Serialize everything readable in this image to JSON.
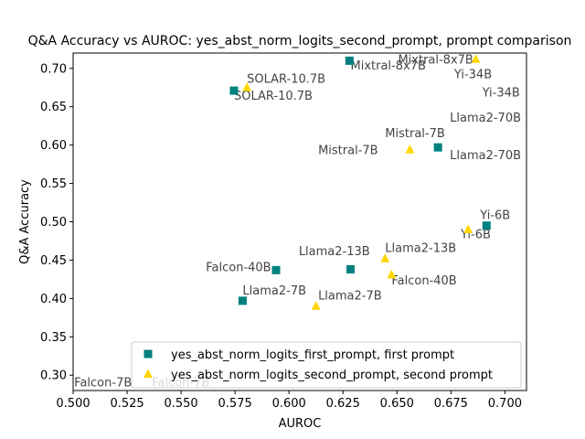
{
  "chart_data": {
    "type": "scatter",
    "title": "Q&A Accuracy vs AUROC: yes_abst_norm_logits_second_prompt, prompt comparison",
    "xlabel": "AUROC",
    "ylabel": "Q&A Accuracy",
    "xlim": [
      0.5,
      0.71
    ],
    "ylim": [
      0.28,
      0.72
    ],
    "xticks": [
      "0.500",
      "0.525",
      "0.550",
      "0.575",
      "0.600",
      "0.625",
      "0.650",
      "0.675",
      "0.700"
    ],
    "yticks": [
      "0.30",
      "0.35",
      "0.40",
      "0.45",
      "0.50",
      "0.55",
      "0.60",
      "0.65",
      "0.70"
    ],
    "grid": false,
    "legend_position": "lower-right",
    "series": [
      {
        "name": "yes_abst_norm_logits_first_prompt, first prompt",
        "marker": "square",
        "color": "#008080",
        "points": [
          {
            "label": "Mixtral-8x7B",
            "x": 0.628,
            "y": 0.71
          },
          {
            "label": "SOLAR-10.7B",
            "x": 0.5745,
            "y": 0.671
          },
          {
            "label": "Llama2-70B",
            "x": 0.669,
            "y": 0.597
          },
          {
            "label": "Yi-6B",
            "x": 0.6915,
            "y": 0.495
          },
          {
            "label": "Llama2-13B",
            "x": 0.6285,
            "y": 0.438
          },
          {
            "label": "Falcon-40B",
            "x": 0.594,
            "y": 0.437
          },
          {
            "label": "Llama2-7B",
            "x": 0.5785,
            "y": 0.397
          },
          {
            "label": "Falcon-7B",
            "x": 0.5,
            "y": 0.265
          },
          {
            "label": "Yi-34B",
            "x": 0.715,
            "y": 0.66
          }
        ]
      },
      {
        "name": "yes_abst_norm_logits_second_prompt, second prompt",
        "marker": "triangle",
        "color": "#ffd700",
        "points": [
          {
            "label": "Mixtral-8x7B",
            "x": 0.6865,
            "y": 0.712
          },
          {
            "label": "SOLAR-10.7B",
            "x": 0.5805,
            "y": 0.675
          },
          {
            "label": "Mistral-7B",
            "x": 0.656,
            "y": 0.594
          },
          {
            "label": "Yi-6B",
            "x": 0.683,
            "y": 0.49
          },
          {
            "label": "Llama2-13B",
            "x": 0.6445,
            "y": 0.452
          },
          {
            "label": "Falcon-40B",
            "x": 0.6475,
            "y": 0.431
          },
          {
            "label": "Llama2-7B",
            "x": 0.6125,
            "y": 0.39
          },
          {
            "label": "Falcon-7B",
            "x": 0.535,
            "y": 0.265
          },
          {
            "label": "Yi-34B",
            "x": 0.715,
            "y": 0.68
          },
          {
            "label": "Llama2-70B",
            "x": 0.715,
            "y": 0.62
          }
        ]
      }
    ],
    "annotations": [
      {
        "text": "Mixtral-8x7B",
        "x": 0.6285,
        "y": 0.6985
      },
      {
        "text": "Mixtral-8x7B",
        "x": 0.6505,
        "y": 0.7065
      },
      {
        "text": "SOLAR-10.7B",
        "x": 0.5745,
        "y": 0.659
      },
      {
        "text": "SOLAR-10.7B",
        "x": 0.5805,
        "y": 0.6815
      },
      {
        "text": "Yi-34B",
        "x": 0.6765,
        "y": 0.6875
      },
      {
        "text": "Yi-34B",
        "x": 0.6895,
        "y": 0.6635
      },
      {
        "text": "Llama2-70B",
        "x": 0.6745,
        "y": 0.6305
      },
      {
        "text": "Mistral-7B",
        "x": 0.6445,
        "y": 0.6105
      },
      {
        "text": "Mistral-7B",
        "x": 0.6135,
        "y": 0.5885
      },
      {
        "text": "Llama2-70B",
        "x": 0.6745,
        "y": 0.5815
      },
      {
        "text": "Yi-6B",
        "x": 0.6885,
        "y": 0.5035
      },
      {
        "text": "Yi-6B",
        "x": 0.6795,
        "y": 0.4785
      },
      {
        "text": "Llama2-13B",
        "x": 0.6045,
        "y": 0.4565
      },
      {
        "text": "Llama2-13B",
        "x": 0.6445,
        "y": 0.4605
      },
      {
        "text": "Falcon-40B",
        "x": 0.5615,
        "y": 0.4355
      },
      {
        "text": "Falcon-40B",
        "x": 0.6475,
        "y": 0.4185
      },
      {
        "text": "Llama2-7B",
        "x": 0.5785,
        "y": 0.4055
      },
      {
        "text": "Llama2-7B",
        "x": 0.6135,
        "y": 0.3985
      },
      {
        "text": "Falcon-7B",
        "x": 0.5005,
        "y": 0.2855
      },
      {
        "text": "Falcon-7B",
        "x": 0.5365,
        "y": 0.2855
      }
    ]
  }
}
